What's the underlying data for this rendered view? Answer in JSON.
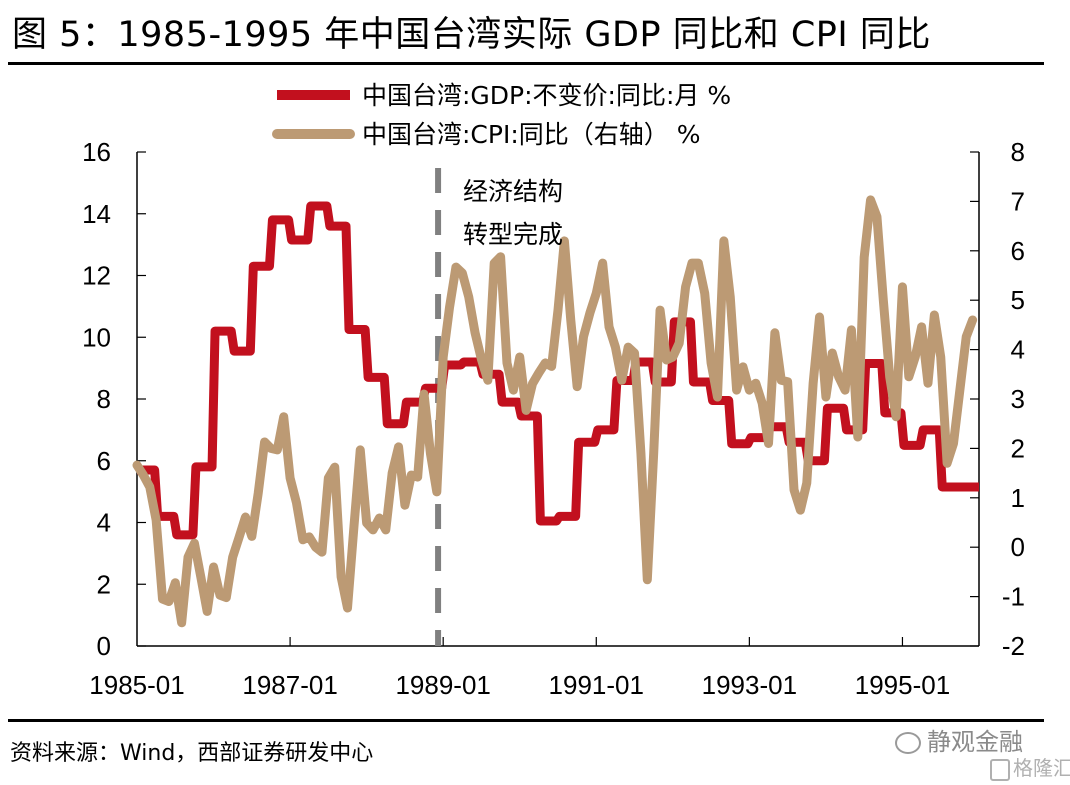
{
  "header": {
    "title": "图 5：1985-1995 年中国台湾实际 GDP 同比和 CPI 同比"
  },
  "footer": {
    "source": "资料来源：Wind，西部证券研发中心"
  },
  "watermarks": {
    "wechat": "静观金融",
    "site": "格隆汇"
  },
  "colors": {
    "gdp": "#C2101E",
    "cpi": "#BC9A74",
    "divider": "#808080",
    "axis": "#000000"
  },
  "chart_data": {
    "type": "line",
    "title": "1985-1995 年中国台湾实际 GDP 同比和 CPI 同比",
    "x_start": "1985-01",
    "x_end": "1995-12",
    "x_ticks": [
      "1985-01",
      "1987-01",
      "1989-01",
      "1991-01",
      "1993-01",
      "1995-01"
    ],
    "y_left": {
      "label": "",
      "ylim": [
        0,
        16
      ],
      "ticks": [
        "0",
        "2",
        "4",
        "6",
        "8",
        "10",
        "12",
        "14",
        "16"
      ]
    },
    "y_right": {
      "label": "",
      "ylim": [
        -2,
        8
      ],
      "ticks": [
        "-2",
        "-1",
        "0",
        "1",
        "2",
        "3",
        "4",
        "5",
        "6",
        "7",
        "8"
      ]
    },
    "grid": false,
    "legend_position": "top-center",
    "annotation": {
      "at": "1988-12",
      "line1": "经济结构",
      "line2": "转型完成",
      "style": "dashed-vertical"
    },
    "series": [
      {
        "name": "中国台湾:GDP:不变价:同比:月 %",
        "axis": "left",
        "frequency": "quarterly-step",
        "x": [
          "1985Q1",
          "1985Q2",
          "1985Q3",
          "1985Q4",
          "1986Q1",
          "1986Q2",
          "1986Q3",
          "1986Q4",
          "1987Q1",
          "1987Q2",
          "1987Q3",
          "1987Q4",
          "1988Q1",
          "1988Q2",
          "1988Q3",
          "1988Q4",
          "1989Q1",
          "1989Q2",
          "1989Q3",
          "1989Q4",
          "1990Q1",
          "1990Q2",
          "1990Q3",
          "1990Q4",
          "1991Q1",
          "1991Q2",
          "1991Q3",
          "1991Q4",
          "1992Q1",
          "1992Q2",
          "1992Q3",
          "1992Q4",
          "1993Q1",
          "1993Q2",
          "1993Q3",
          "1993Q4",
          "1994Q1",
          "1994Q2",
          "1994Q3",
          "1994Q4",
          "1995Q1",
          "1995Q2",
          "1995Q3",
          "1995Q4"
        ],
        "values": [
          5.7,
          4.2,
          3.6,
          5.8,
          10.2,
          9.55,
          12.3,
          13.8,
          13.15,
          14.25,
          13.6,
          10.25,
          8.7,
          7.2,
          7.9,
          8.35,
          9.1,
          9.2,
          8.8,
          7.9,
          7.45,
          4.05,
          4.2,
          6.6,
          7.0,
          8.6,
          9.2,
          8.55,
          10.5,
          8.55,
          7.95,
          6.55,
          6.75,
          7.1,
          6.6,
          6.0,
          7.7,
          7.0,
          9.15,
          7.55,
          6.5,
          7.0,
          5.15,
          5.15
        ]
      },
      {
        "name": "中国台湾:CPI:同比（右轴） %",
        "axis": "right",
        "frequency": "monthly",
        "values": [
          1.66,
          1.46,
          1.22,
          0.55,
          -1.05,
          -1.1,
          -0.72,
          -1.53,
          -0.2,
          0.08,
          -0.6,
          -1.3,
          -0.4,
          -0.97,
          -1.02,
          -0.2,
          0.2,
          0.61,
          0.22,
          1.09,
          2.13,
          2.0,
          1.97,
          2.64,
          1.4,
          0.9,
          0.15,
          0.21,
          0.0,
          -0.1,
          1.4,
          1.62,
          -0.6,
          -1.23,
          0.4,
          1.97,
          0.49,
          0.35,
          0.59,
          0.35,
          1.5,
          2.03,
          0.85,
          1.46,
          1.42,
          3.1,
          1.9,
          1.12,
          3.85,
          4.86,
          5.67,
          5.55,
          5.07,
          4.34,
          3.8,
          3.38,
          5.75,
          5.88,
          3.73,
          3.18,
          3.85,
          2.77,
          3.31,
          3.53,
          3.73,
          3.66,
          4.8,
          6.2,
          4.6,
          3.25,
          4.26,
          4.74,
          5.14,
          5.75,
          4.46,
          4.05,
          3.38,
          4.05,
          3.93,
          1.9,
          -0.66,
          1.9,
          4.8,
          3.79,
          3.85,
          4.13,
          5.27,
          5.75,
          5.75,
          5.14,
          3.73,
          3.04,
          6.2,
          5.07,
          3.18,
          3.65,
          3.18,
          3.32,
          2.92,
          2.1,
          4.34,
          3.38,
          3.35,
          1.16,
          0.75,
          1.3,
          3.32,
          4.66,
          3.04,
          3.93,
          3.45,
          3.18,
          4.4,
          2.23,
          5.87,
          7.03,
          6.69,
          5.0,
          3.45,
          2.64,
          5.27,
          3.45,
          3.85,
          4.46,
          3.32,
          4.7,
          3.85,
          1.7,
          2.1,
          3.18,
          4.26,
          4.6
        ]
      }
    ]
  }
}
